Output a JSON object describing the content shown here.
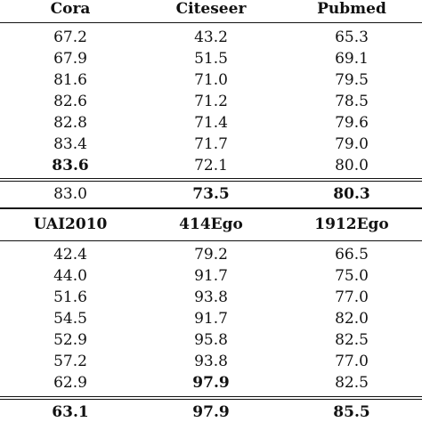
{
  "section1": {
    "headers": [
      "Cora",
      "Citeseer",
      "Pubmed"
    ],
    "rows": [
      [
        "67.2",
        "43.2",
        "65.3"
      ],
      [
        "67.9",
        "51.5",
        "69.1"
      ],
      [
        "81.6",
        "71.0",
        "79.5"
      ],
      [
        "82.6",
        "71.2",
        "78.5"
      ],
      [
        "82.8",
        "71.4",
        "79.6"
      ],
      [
        "83.4",
        "71.7",
        "79.0"
      ],
      [
        "83.6",
        "72.1",
        "80.0"
      ]
    ],
    "best_row": [
      "83.0",
      "73.5",
      "80.3"
    ]
  },
  "section2": {
    "headers": [
      "UAI2010",
      "414Ego",
      "1912Ego"
    ],
    "rows": [
      [
        "42.4",
        "79.2",
        "66.5"
      ],
      [
        "44.0",
        "91.7",
        "75.0"
      ],
      [
        "51.6",
        "93.8",
        "77.0"
      ],
      [
        "54.5",
        "91.7",
        "82.0"
      ],
      [
        "52.9",
        "95.8",
        "82.5"
      ],
      [
        "57.2",
        "93.8",
        "77.0"
      ],
      [
        "62.9",
        "97.9",
        "82.5"
      ]
    ],
    "best_row": [
      "63.1",
      "97.9",
      "85.5"
    ]
  }
}
